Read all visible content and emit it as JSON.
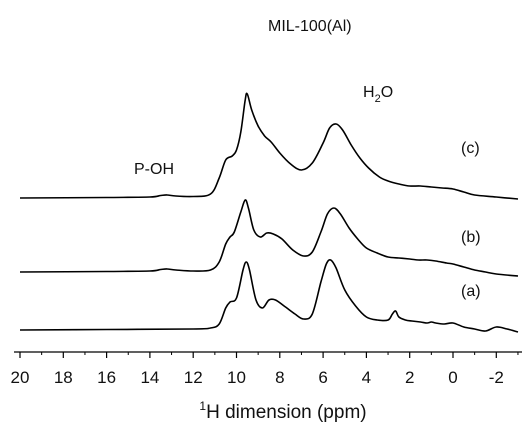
{
  "chart_data": {
    "type": "line",
    "title": "",
    "xlabel_prefix": "1",
    "xlabel_element": "H dimension (ppm)",
    "ylabel": "",
    "xlim": [
      20,
      -3
    ],
    "x_reversed": true,
    "xticks": [
      "20",
      "18",
      "16",
      "14",
      "12",
      "10",
      "8",
      "6",
      "4",
      "2",
      "0",
      "-2"
    ],
    "xtick_values": [
      20,
      18,
      16,
      14,
      12,
      10,
      8,
      6,
      4,
      2,
      0,
      -2
    ],
    "grid": false,
    "legend": "none",
    "series": [
      {
        "name": "(a)",
        "baseline": 0,
        "x": [
          20,
          16,
          12,
          11.2,
          10.8,
          10.5,
          10.3,
          10.0,
          9.7,
          9.55,
          9.4,
          9.1,
          8.8,
          8.5,
          8.2,
          7.8,
          7.3,
          6.9,
          6.5,
          6.1,
          5.85,
          5.65,
          5.4,
          5.0,
          4.5,
          4.0,
          3.5,
          3.0,
          2.8,
          2.65,
          2.5,
          2.2,
          1.9,
          1.5,
          1.2,
          1.0,
          0.8,
          0.4,
          0.0,
          -0.5,
          -1.0,
          -1.5,
          -2.0,
          -2.5,
          -3.0
        ],
        "y": [
          0,
          0.5,
          1,
          2,
          6,
          22,
          28,
          32,
          60,
          68,
          60,
          30,
          22,
          30,
          30,
          24,
          16,
          11,
          16,
          48,
          66,
          70,
          62,
          40,
          24,
          13,
          10,
          10,
          16,
          19,
          13,
          10,
          9,
          8,
          7,
          8,
          7,
          6,
          7,
          3,
          1,
          -1,
          3,
          1,
          -2
        ]
      },
      {
        "name": "(b)",
        "baseline": 0,
        "x": [
          20,
          16,
          14,
          13.5,
          13.2,
          12.8,
          12,
          11.2,
          10.8,
          10.5,
          10.3,
          10.1,
          9.8,
          9.6,
          9.45,
          9.2,
          8.9,
          8.6,
          8.3,
          7.9,
          7.4,
          6.9,
          6.5,
          6.1,
          5.8,
          5.5,
          5.2,
          4.8,
          4.4,
          4.0,
          3.5,
          3.0,
          2.5,
          2.0,
          1.6,
          1.2,
          0.8,
          0.3,
          0.0,
          -0.5,
          -1.0,
          -1.5,
          -2.0,
          -3.0
        ],
        "y": [
          0,
          0.5,
          1,
          2.5,
          3,
          2,
          1,
          2,
          10,
          28,
          35,
          40,
          60,
          72,
          64,
          42,
          35,
          39,
          38,
          33,
          22,
          16,
          20,
          40,
          58,
          64,
          58,
          44,
          33,
          24,
          19,
          15,
          14,
          13,
          12,
          12,
          11,
          9,
          8,
          5,
          2,
          0,
          -2,
          -4
        ]
      },
      {
        "name": "(c)",
        "baseline": 0,
        "x": [
          20,
          16,
          14,
          13.5,
          13.2,
          12.8,
          12,
          11.2,
          10.8,
          10.5,
          10.2,
          10.0,
          9.8,
          9.6,
          9.5,
          9.3,
          9.0,
          8.7,
          8.4,
          8.0,
          7.5,
          7.0,
          6.5,
          6.0,
          5.7,
          5.4,
          5.1,
          4.7,
          4.3,
          3.9,
          3.4,
          3.0,
          2.5,
          2.0,
          1.5,
          1.0,
          0.5,
          0.0,
          -0.5,
          -1.0,
          -2.0,
          -3.0
        ],
        "y": [
          0,
          0.5,
          1,
          2.5,
          3,
          2,
          1.5,
          4,
          20,
          38,
          42,
          48,
          66,
          98,
          104,
          88,
          72,
          62,
          56,
          45,
          34,
          28,
          35,
          55,
          70,
          74,
          68,
          53,
          40,
          30,
          21,
          17,
          14,
          12,
          12,
          11,
          10,
          9,
          6,
          3,
          1,
          -1
        ]
      }
    ],
    "annotations": [
      {
        "text": "MIL-100(Al)"
      },
      {
        "text": "P-OH"
      },
      {
        "text_main": "H",
        "text_sub": "2",
        "text_tail": "O"
      },
      {
        "text": "(c)"
      },
      {
        "text": "(b)"
      },
      {
        "text": "(a)"
      }
    ]
  }
}
